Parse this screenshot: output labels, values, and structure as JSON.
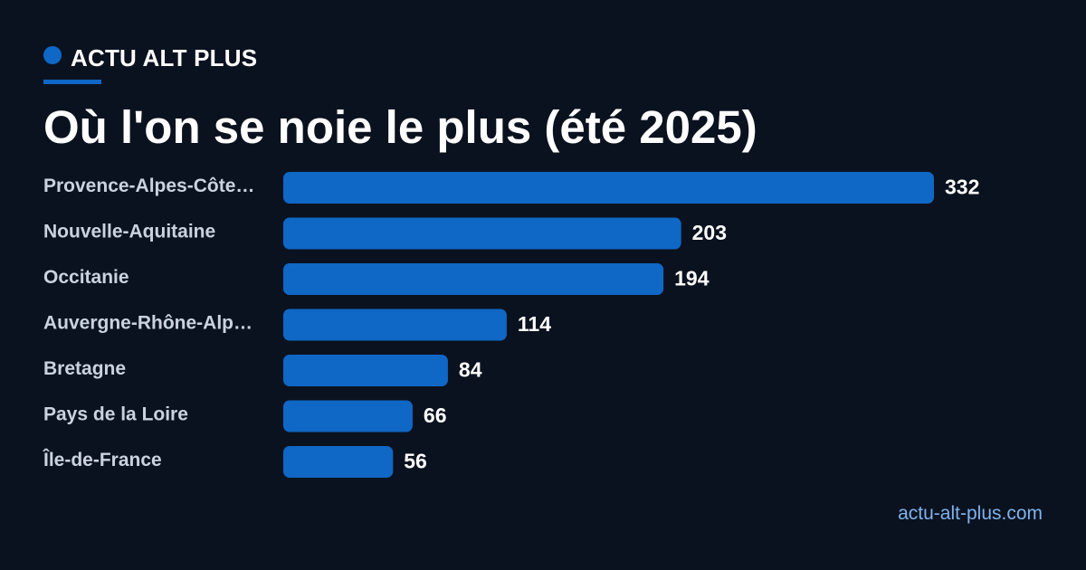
{
  "brand": {
    "name": "ACTU ALT PLUS",
    "accent_color": "#0f67c6"
  },
  "footer": {
    "url": "actu-alt-plus.com"
  },
  "colors": {
    "background": "#0b121f",
    "bar": "#0f67c6",
    "category_label": "#c9d3e0",
    "value_label": "#ffffff",
    "footer_link": "#7fb2ec"
  },
  "chart_data": {
    "type": "bar",
    "orientation": "horizontal",
    "title": "Où l'on se noie le plus (été 2025)",
    "categories": [
      "Provence-Alpes-Côte…",
      "Nouvelle-Aquitaine",
      "Occitanie",
      "Auvergne-Rhône-Alp…",
      "Bretagne",
      "Pays de la Loire",
      "Île-de-France"
    ],
    "values": [
      332,
      203,
      194,
      114,
      84,
      66,
      56
    ],
    "xlim": [
      0,
      332
    ],
    "grid": false,
    "legend": "none",
    "data_labels": true
  }
}
